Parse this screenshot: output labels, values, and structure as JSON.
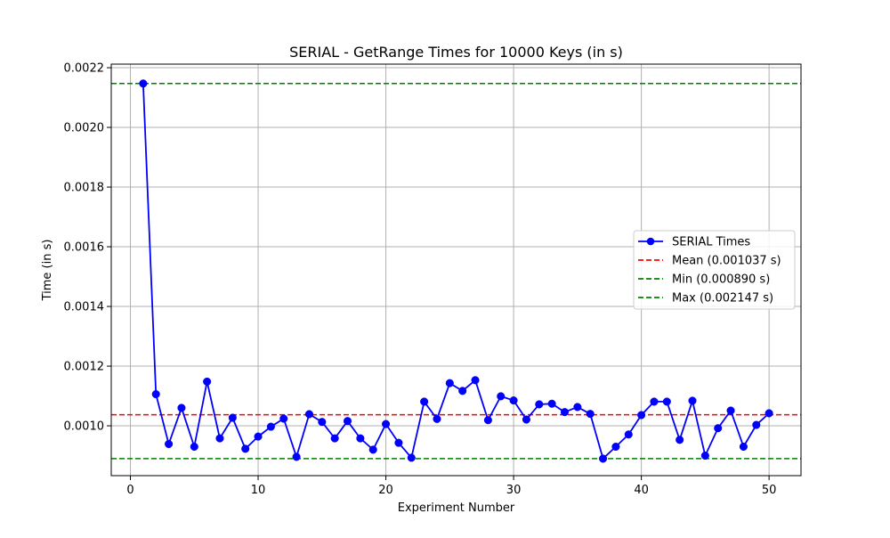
{
  "chart_data": {
    "type": "line",
    "title": "SERIAL - GetRange Times for 10000 Keys (in s)",
    "xlabel": "Experiment Number",
    "ylabel": "Time (in s)",
    "xlim": [
      -1.5,
      52.5
    ],
    "ylim": [
      0.000833,
      0.002212
    ],
    "x_ticks": [
      0,
      10,
      20,
      30,
      40,
      50
    ],
    "x_tick_labels": [
      "0",
      "10",
      "20",
      "30",
      "40",
      "50"
    ],
    "y_ticks": [
      0.001,
      0.0012,
      0.0014,
      0.0016,
      0.0018,
      0.002,
      0.0022
    ],
    "y_tick_labels": [
      "0.0010",
      "0.0012",
      "0.0014",
      "0.0016",
      "0.0018",
      "0.0020",
      "0.0022"
    ],
    "grid": true,
    "legend_position": "center-right",
    "series": [
      {
        "name": "SERIAL Times",
        "style": "line-marker",
        "color": "#0000ff",
        "x": [
          1,
          2,
          3,
          4,
          5,
          6,
          7,
          8,
          9,
          10,
          11,
          12,
          13,
          14,
          15,
          16,
          17,
          18,
          19,
          20,
          21,
          22,
          23,
          24,
          25,
          26,
          27,
          28,
          29,
          30,
          31,
          32,
          33,
          34,
          35,
          36,
          37,
          38,
          39,
          40,
          41,
          42,
          43,
          44,
          45,
          46,
          47,
          48,
          49,
          50
        ],
        "values": [
          0.002147,
          0.001106,
          0.000939,
          0.00106,
          0.00093,
          0.001148,
          0.000958,
          0.001027,
          0.000923,
          0.000964,
          0.000997,
          0.001024,
          0.000896,
          0.001039,
          0.001013,
          0.000958,
          0.001016,
          0.000958,
          0.00092,
          0.001006,
          0.000943,
          0.000893,
          0.001081,
          0.001023,
          0.001143,
          0.001117,
          0.001153,
          0.001019,
          0.001099,
          0.001085,
          0.001021,
          0.001072,
          0.001074,
          0.001046,
          0.001063,
          0.00104,
          0.00089,
          0.00093,
          0.000971,
          0.001036,
          0.001081,
          0.001081,
          0.000953,
          0.001084,
          0.0009,
          0.000992,
          0.001051,
          0.00093,
          0.001003,
          0.001042
        ]
      }
    ],
    "reference_lines": [
      {
        "name": "Mean (0.001037 s)",
        "value": 0.001037,
        "color": "#ff0000",
        "style": "dashed"
      },
      {
        "name": "Min (0.000890 s)",
        "value": 0.00089,
        "color": "#008000",
        "style": "dashed"
      },
      {
        "name": "Max (0.002147 s)",
        "value": 0.002147,
        "color": "#008000",
        "style": "dashed"
      }
    ],
    "colors": {
      "grid": "#b0b0b0",
      "axes": "#000000",
      "legend_border": "#cccccc"
    }
  }
}
